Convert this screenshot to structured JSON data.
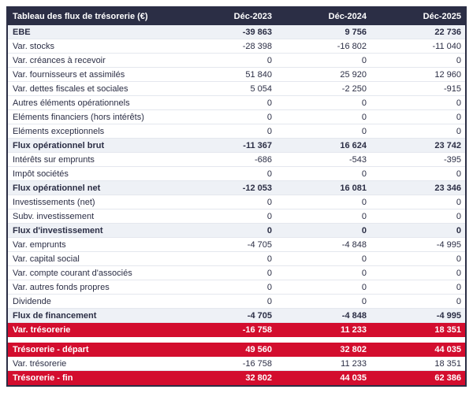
{
  "table": {
    "title": "Tableau des flux de trésorerie (€)",
    "columns": [
      "Déc-2023",
      "Déc-2024",
      "Déc-2025"
    ],
    "colors": {
      "header_bg": "#2b2e45",
      "highlight_bg": "#d30d2e",
      "subtotal_bg": "#eef1f6"
    },
    "rows": [
      {
        "label": "EBE",
        "values": [
          "-39 863",
          "9 756",
          "22 736"
        ],
        "style": "subtotal"
      },
      {
        "label": "Var. stocks",
        "values": [
          "-28 398",
          "-16 802",
          "-11 040"
        ],
        "style": "normal"
      },
      {
        "label": "Var. créances à recevoir",
        "values": [
          "0",
          "0",
          "0"
        ],
        "style": "normal"
      },
      {
        "label": "Var. fournisseurs et assimilés",
        "values": [
          "51 840",
          "25 920",
          "12 960"
        ],
        "style": "normal"
      },
      {
        "label": "Var. dettes fiscales et sociales",
        "values": [
          "5 054",
          "-2 250",
          "-915"
        ],
        "style": "normal"
      },
      {
        "label": "Autres éléments opérationnels",
        "values": [
          "0",
          "0",
          "0"
        ],
        "style": "normal"
      },
      {
        "label": "Eléments financiers (hors intérêts)",
        "values": [
          "0",
          "0",
          "0"
        ],
        "style": "normal"
      },
      {
        "label": "Eléments exceptionnels",
        "values": [
          "0",
          "0",
          "0"
        ],
        "style": "normal"
      },
      {
        "label": "Flux opérationnel brut",
        "values": [
          "-11 367",
          "16 624",
          "23 742"
        ],
        "style": "subtotal"
      },
      {
        "label": "Intérêts sur emprunts",
        "values": [
          "-686",
          "-543",
          "-395"
        ],
        "style": "normal"
      },
      {
        "label": "Impôt sociétés",
        "values": [
          "0",
          "0",
          "0"
        ],
        "style": "normal"
      },
      {
        "label": "Flux opérationnel net",
        "values": [
          "-12 053",
          "16 081",
          "23 346"
        ],
        "style": "subtotal"
      },
      {
        "label": "Investissements (net)",
        "values": [
          "0",
          "0",
          "0"
        ],
        "style": "normal"
      },
      {
        "label": "Subv. investissement",
        "values": [
          "0",
          "0",
          "0"
        ],
        "style": "normal"
      },
      {
        "label": "Flux d'investissement",
        "values": [
          "0",
          "0",
          "0"
        ],
        "style": "subtotal"
      },
      {
        "label": "Var. emprunts",
        "values": [
          "-4 705",
          "-4 848",
          "-4 995"
        ],
        "style": "normal"
      },
      {
        "label": "Var. capital social",
        "values": [
          "0",
          "0",
          "0"
        ],
        "style": "normal"
      },
      {
        "label": "Var. compte courant d'associés",
        "values": [
          "0",
          "0",
          "0"
        ],
        "style": "normal"
      },
      {
        "label": "Var. autres fonds propres",
        "values": [
          "0",
          "0",
          "0"
        ],
        "style": "normal"
      },
      {
        "label": "Dividende",
        "values": [
          "0",
          "0",
          "0"
        ],
        "style": "normal"
      },
      {
        "label": "Flux de financement",
        "values": [
          "-4 705",
          "-4 848",
          "-4 995"
        ],
        "style": "subtotal"
      },
      {
        "label": "Var. trésorerie",
        "values": [
          "-16 758",
          "11 233",
          "18 351"
        ],
        "style": "highlight"
      },
      {
        "label": "",
        "values": [],
        "style": "spacer"
      },
      {
        "label": "Trésorerie - départ",
        "values": [
          "49 560",
          "32 802",
          "44 035"
        ],
        "style": "highlight"
      },
      {
        "label": "Var. trésorerie",
        "values": [
          "-16 758",
          "11 233",
          "18 351"
        ],
        "style": "normal"
      },
      {
        "label": "Trésorerie - fin",
        "values": [
          "32 802",
          "44 035",
          "62 386"
        ],
        "style": "highlight"
      }
    ]
  }
}
